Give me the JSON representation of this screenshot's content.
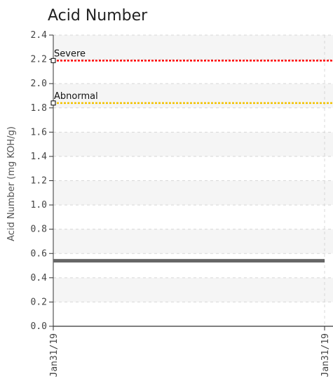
{
  "chart_data": {
    "type": "line",
    "title": "Acid Number",
    "ylabel": "Acid Number (mg KOH/g)",
    "xlabel": "",
    "ylim": [
      0,
      2.4
    ],
    "yticks": [
      "0.0",
      "0.2",
      "0.4",
      "0.6",
      "0.8",
      "1.0",
      "1.2",
      "1.4",
      "1.6",
      "1.8",
      "2.0",
      "2.2",
      "2.4"
    ],
    "x": [
      "Jan31/19",
      "Jan31/19"
    ],
    "grid": true,
    "series": [
      {
        "values": [
          0.54,
          0.54
        ],
        "color": "#666666"
      }
    ],
    "limits": [
      {
        "name": "Severe",
        "value": 2.19,
        "color": "#ff0000"
      },
      {
        "name": "Abnormal",
        "value": 1.84,
        "color": "#f2c200"
      }
    ]
  }
}
